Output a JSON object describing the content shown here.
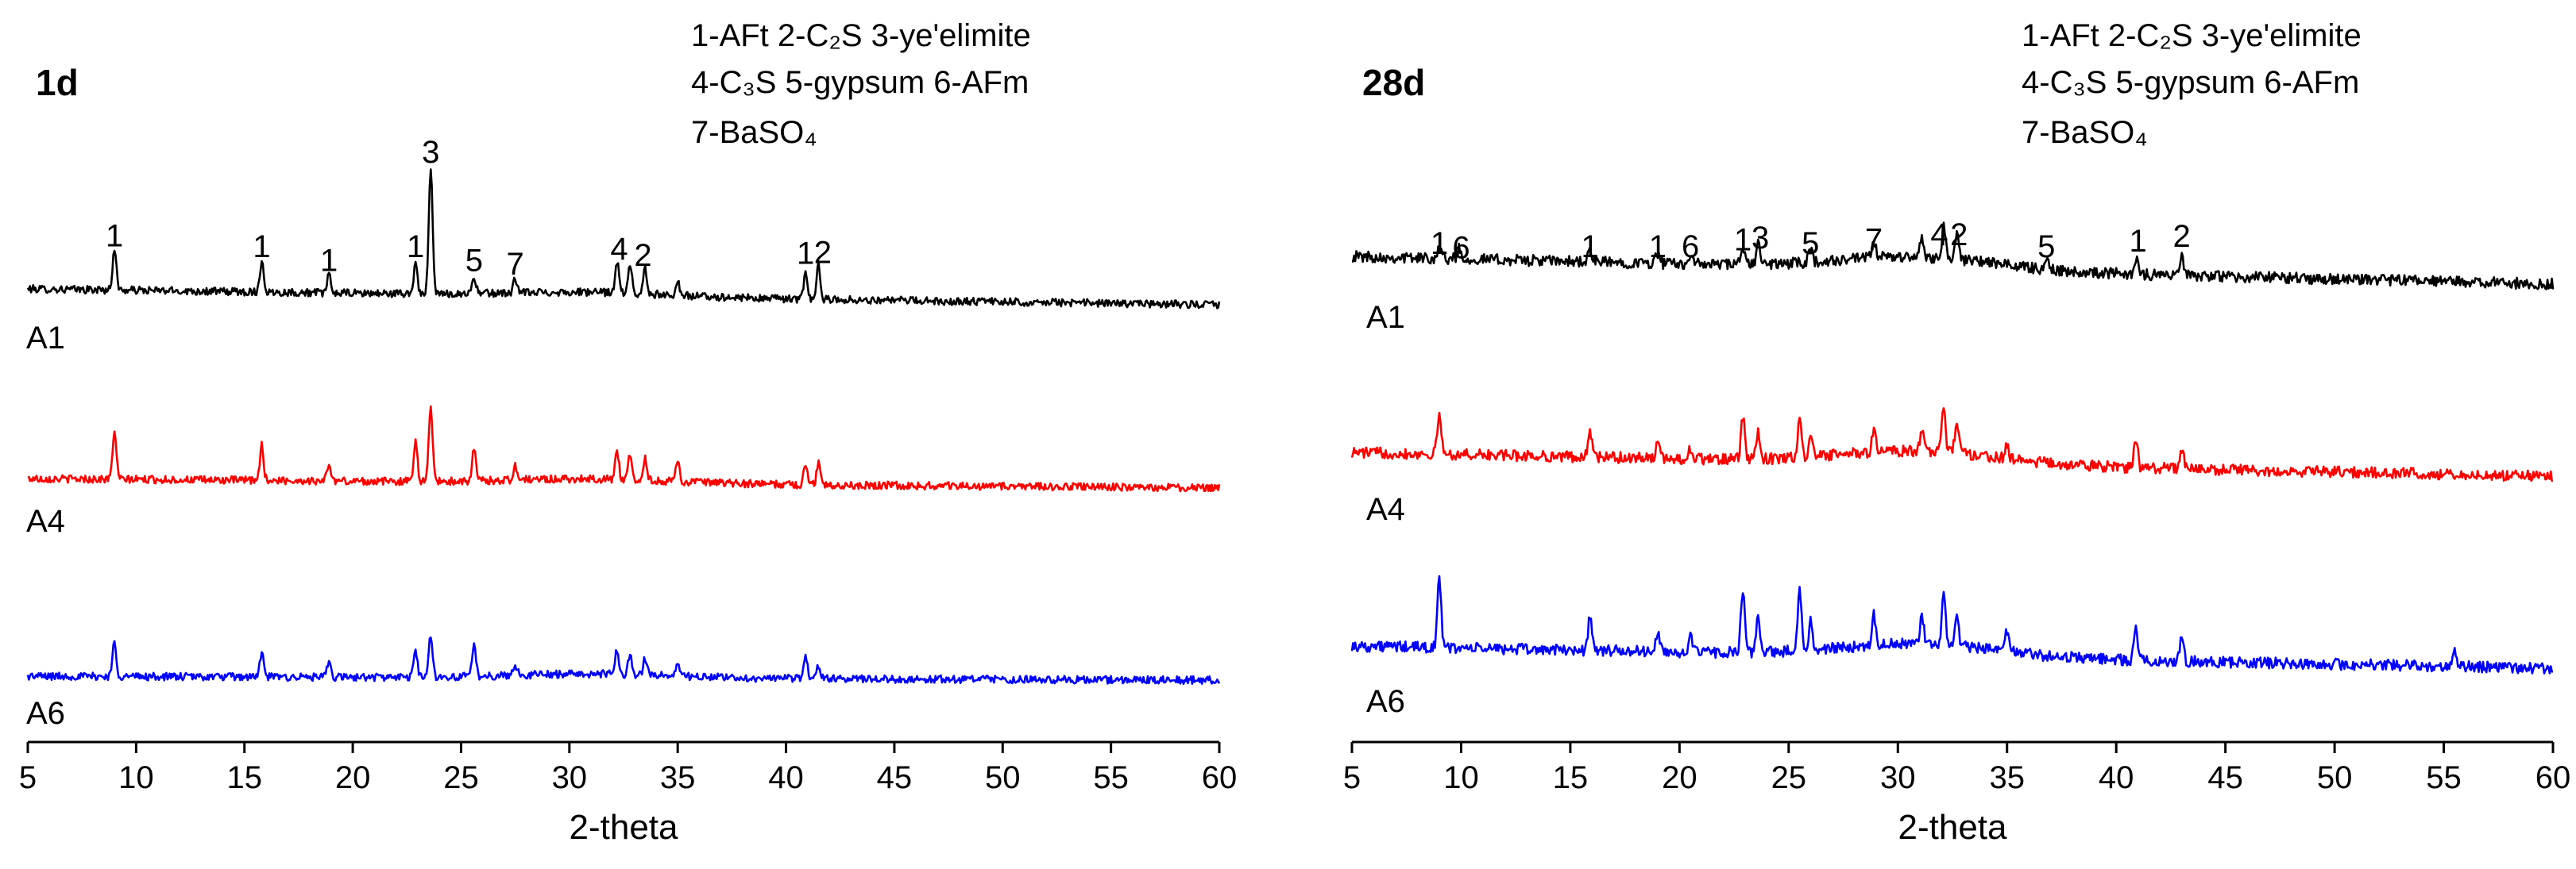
{
  "chart_data": [
    {
      "type": "line",
      "title": "1d",
      "xlabel": "2-theta",
      "ylabel": "",
      "xlim": [
        5,
        60
      ],
      "x_ticks": [
        5,
        10,
        15,
        20,
        25,
        30,
        35,
        40,
        45,
        50,
        55,
        60
      ],
      "legend": [
        [
          "1-AFt",
          "2-C₂S",
          "3-ye'elimite"
        ],
        [
          "4-C₃S",
          "5-gypsum",
          "6-AFm"
        ],
        [
          "7-BaSO₄"
        ]
      ],
      "series": [
        {
          "name": "A1",
          "color": "#000000",
          "baseline": 600,
          "end_offset": -20,
          "peaks": [
            [
              9.0,
              6
            ],
            [
              15.8,
              4.5
            ],
            [
              18.9,
              2.5
            ],
            [
              22.9,
              4.5
            ],
            [
              23.6,
              18
            ],
            [
              25.6,
              2.5
            ],
            [
              27.5,
              2
            ],
            [
              32.2,
              4.5
            ],
            [
              32.8,
              4
            ],
            [
              33.5,
              3.5
            ],
            [
              35.0,
              2
            ],
            [
              40.9,
              3.5
            ],
            [
              41.5,
              5
            ]
          ]
        },
        {
          "name": "A4",
          "color": "#ff0000",
          "baseline": 280,
          "end_offset": -12,
          "peaks": [
            [
              9.0,
              7
            ],
            [
              15.8,
              5
            ],
            [
              18.9,
              2.5
            ],
            [
              22.9,
              6
            ],
            [
              23.6,
              11
            ],
            [
              25.6,
              4.5
            ],
            [
              27.5,
              2
            ],
            [
              32.2,
              4
            ],
            [
              32.8,
              3.5
            ],
            [
              33.5,
              3
            ],
            [
              35.0,
              3
            ],
            [
              40.9,
              3
            ],
            [
              41.5,
              3
            ]
          ]
        },
        {
          "name": "A6",
          "color": "#0000ff",
          "baseline": 0,
          "end_offset": -5,
          "peaks": [
            [
              9.0,
              5
            ],
            [
              15.8,
              3.5
            ],
            [
              18.9,
              2
            ],
            [
              22.9,
              4
            ],
            [
              23.6,
              6
            ],
            [
              25.6,
              4.5
            ],
            [
              27.5,
              1.5
            ],
            [
              32.2,
              3.5
            ],
            [
              32.8,
              3
            ],
            [
              33.5,
              2.5
            ],
            [
              35.0,
              2
            ],
            [
              40.9,
              3.5
            ],
            [
              41.5,
              2
            ]
          ]
        }
      ],
      "peak_labels": [
        {
          "text": "1",
          "x": 9.0,
          "series": "A1"
        },
        {
          "text": "1",
          "x": 15.8,
          "series": "A1"
        },
        {
          "text": "1",
          "x": 18.9,
          "series": "A1"
        },
        {
          "text": "1",
          "x": 22.9,
          "series": "A1"
        },
        {
          "text": "3",
          "x": 23.6,
          "series": "A1"
        },
        {
          "text": "5",
          "x": 25.6,
          "series": "A1"
        },
        {
          "text": "7",
          "x": 27.5,
          "series": "A1"
        },
        {
          "text": "4",
          "x": 32.3,
          "series": "A1"
        },
        {
          "text": "2",
          "x": 33.4,
          "series": "A1"
        },
        {
          "text": "1",
          "x": 40.9,
          "series": "A1"
        },
        {
          "text": "2",
          "x": 41.7,
          "series": "A1"
        }
      ]
    },
    {
      "type": "line",
      "title": "28d",
      "xlabel": "2-theta",
      "ylabel": "",
      "xlim": [
        5,
        60
      ],
      "x_ticks": [
        5,
        10,
        15,
        20,
        25,
        30,
        35,
        40,
        45,
        50,
        55,
        60
      ],
      "legend": [
        [
          "1-AFt",
          "2-C₂S",
          "3-ye'elimite"
        ],
        [
          "4-C₃S",
          "5-gypsum",
          "6-AFm"
        ],
        [
          "7-BaSO₄"
        ]
      ],
      "series": [
        {
          "name": "A1",
          "color": "#000000",
          "baseline": 600,
          "end_offset": -35,
          "peaks": [
            [
              9.0,
              2
            ],
            [
              9.9,
              1.5
            ],
            [
              15.9,
              1.5
            ],
            [
              19.0,
              1.5
            ],
            [
              20.5,
              1.5
            ],
            [
              22.9,
              2.5
            ],
            [
              23.6,
              3
            ],
            [
              26.0,
              2
            ],
            [
              28.9,
              2.5
            ],
            [
              31.1,
              2.5
            ],
            [
              32.1,
              4.5
            ],
            [
              32.7,
              3.5
            ],
            [
              36.8,
              1.5
            ],
            [
              40.9,
              2.5
            ],
            [
              43.0,
              3
            ]
          ]
        },
        {
          "name": "A4",
          "color": "#ff0000",
          "baseline": 280,
          "end_offset": -30,
          "peaks": [
            [
              9.0,
              6
            ],
            [
              15.9,
              4
            ],
            [
              19.0,
              2
            ],
            [
              20.5,
              1.5
            ],
            [
              22.9,
              6
            ],
            [
              23.6,
              4
            ],
            [
              25.5,
              5.5
            ],
            [
              26.0,
              3
            ],
            [
              28.9,
              3.5
            ],
            [
              31.1,
              3
            ],
            [
              32.1,
              6.5
            ],
            [
              32.7,
              5
            ],
            [
              35.0,
              2
            ],
            [
              40.9,
              4
            ],
            [
              43.0,
              3
            ]
          ]
        },
        {
          "name": "A6",
          "color": "#0000ff",
          "baseline": 0,
          "end_offset": -28,
          "peaks": [
            [
              9.0,
              10
            ],
            [
              15.9,
              5
            ],
            [
              19.0,
              2.5
            ],
            [
              20.5,
              2
            ],
            [
              22.9,
              9
            ],
            [
              23.6,
              5
            ],
            [
              25.5,
              9
            ],
            [
              26.0,
              4
            ],
            [
              28.9,
              4.5
            ],
            [
              31.1,
              4
            ],
            [
              32.1,
              7
            ],
            [
              32.7,
              5
            ],
            [
              35.0,
              3
            ],
            [
              40.9,
              5
            ],
            [
              43.0,
              3.5
            ],
            [
              55.5,
              2
            ]
          ]
        }
      ],
      "peak_labels": [
        {
          "text": "1",
          "x": 9.0,
          "series": "A1"
        },
        {
          "text": "6",
          "x": 10.0,
          "series": "A1"
        },
        {
          "text": "1",
          "x": 15.9,
          "series": "A1"
        },
        {
          "text": "1",
          "x": 19.0,
          "series": "A1"
        },
        {
          "text": "6",
          "x": 20.5,
          "series": "A1"
        },
        {
          "text": "1",
          "x": 22.9,
          "series": "A1"
        },
        {
          "text": "3",
          "x": 23.7,
          "series": "A1"
        },
        {
          "text": "5",
          "x": 26.0,
          "series": "A1"
        },
        {
          "text": "7",
          "x": 28.9,
          "series": "A1"
        },
        {
          "text": "4",
          "x": 31.9,
          "series": "A1"
        },
        {
          "text": "2",
          "x": 32.8,
          "series": "A1"
        },
        {
          "text": "5",
          "x": 36.8,
          "series": "A1"
        },
        {
          "text": "1",
          "x": 41.0,
          "series": "A1"
        },
        {
          "text": "2",
          "x": 43.0,
          "series": "A1"
        }
      ]
    }
  ]
}
